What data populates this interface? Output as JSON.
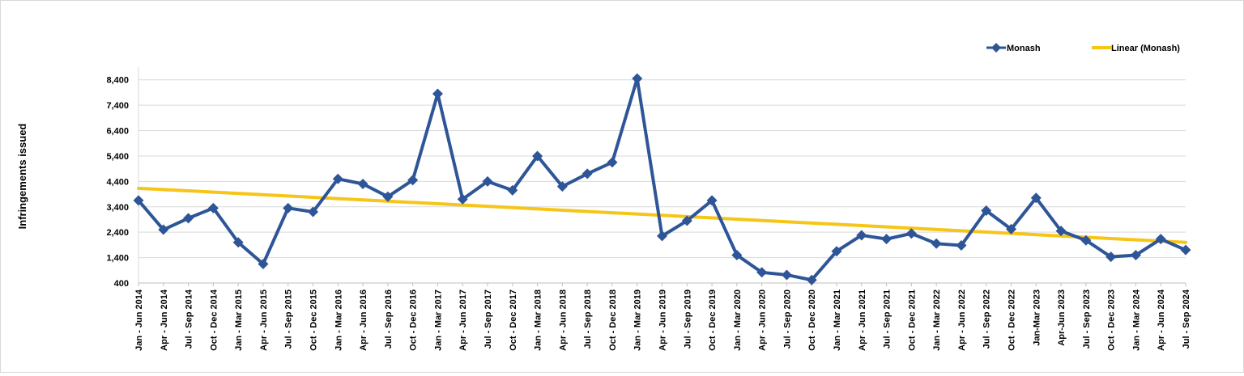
{
  "chart_data": {
    "type": "line",
    "title": "",
    "xlabel": "",
    "ylabel": "Infringements issued",
    "ylim": [
      400,
      8900
    ],
    "yticks": [
      400,
      1400,
      2400,
      3400,
      4400,
      5400,
      6400,
      7400,
      8400
    ],
    "ytick_labels": [
      "400",
      "1,400",
      "2,400",
      "3,400",
      "4,400",
      "5,400",
      "6,400",
      "7,400",
      "8,400"
    ],
    "grid": true,
    "legend_position": "top-right",
    "categories": [
      "Jan - Jun 2014",
      "Apr - Jun 2014",
      "Jul - Sep 2014",
      "Oct - Dec 2014",
      "Jan - Mar 2015",
      "Apr - Jun 2015",
      "Jul - Sep 2015",
      "Oct - Dec 2015",
      "Jan - Mar 2016",
      "Apr - Jun 2016",
      "Jul - Sep 2016",
      "Oct - Dec 2016",
      "Jan - Mar 2017",
      "Apr - Jun 2017",
      "Jul - Sep 2017",
      "Oct - Dec 2017",
      "Jan - Mar 2018",
      "Apr - Jun 2018",
      "Jul - Sep 2018",
      "Oct - Dec 2018",
      "Jan - Mar 2019",
      "Apr - Jun 2019",
      "Jul - Sep 2019",
      "Oct - Dec 2019",
      "Jan - Mar 2020",
      "Apr - Jun 2020",
      "Jul - Sep 2020",
      "Oct - Dec 2020",
      "Jan - Mar 2021",
      "Apr - Jun 2021",
      "Jul - Sep 2021",
      "Oct - Dec 2021",
      "Jan - Mar 2022",
      "Apr - Jun 2022",
      "Jul - Sep 2022",
      "Oct - Dec 2022",
      "Jan-Mar 2023",
      "Apr-Jun 2023",
      "Jul - Sep 2023",
      "Oct - Dec 2023",
      "Jan - Mar 2024",
      "Apr - Jun 2024",
      "Jul - Sep 2024"
    ],
    "series": [
      {
        "name": "Monash",
        "color": "#2e5597",
        "marker": "diamond",
        "values": [
          3650,
          2500,
          2950,
          3350,
          2000,
          1150,
          3350,
          3200,
          4500,
          4300,
          3800,
          4450,
          7850,
          3700,
          4400,
          4050,
          5400,
          4200,
          4700,
          5150,
          8450,
          2250,
          2850,
          3650,
          1500,
          820,
          720,
          520,
          1650,
          2280,
          2130,
          2350,
          1950,
          1880,
          3250,
          2520,
          3750,
          2450,
          2080,
          1430,
          1500,
          2130,
          1700
        ]
      }
    ],
    "trendline": {
      "name": "Linear (Monash)",
      "color": "#f5c518",
      "start": 4130,
      "end": 2000
    }
  }
}
